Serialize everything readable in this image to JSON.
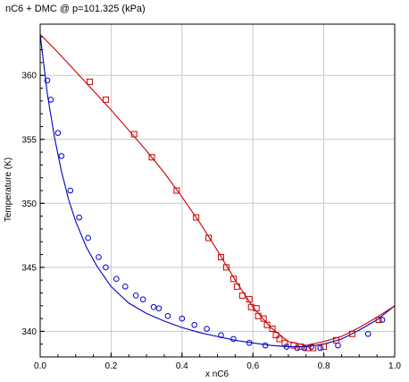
{
  "chart_data": {
    "type": "scatter",
    "title": "nC6 + DMC @ p=101.325 (kPa)",
    "xlabel": "x nC6",
    "ylabel": "Temperature (K)",
    "xlim": [
      0.0,
      1.0
    ],
    "ylim": [
      338,
      364
    ],
    "xticks": [
      0.0,
      0.2,
      0.4,
      0.6,
      0.8,
      1.0
    ],
    "xtick_labels": [
      "0.0",
      "0.2",
      "0.4",
      "0.6",
      "0.8",
      "1.0"
    ],
    "yticks": [
      340,
      345,
      350,
      355,
      360
    ],
    "ytick_labels": [
      "340",
      "345",
      "350",
      "355",
      "360"
    ],
    "grid": true,
    "legend": "none",
    "series": [
      {
        "kind": "line",
        "color": "#0000cc",
        "x": [
          0.0,
          0.02,
          0.04,
          0.06,
          0.08,
          0.1,
          0.13,
          0.16,
          0.2,
          0.25,
          0.3,
          0.35,
          0.4,
          0.45,
          0.5,
          0.55,
          0.6,
          0.65,
          0.7,
          0.75,
          0.8,
          0.85,
          0.9,
          0.95,
          1.0
        ],
        "y": [
          363.2,
          358.6,
          355.2,
          352.5,
          350.3,
          348.6,
          346.6,
          345.1,
          343.5,
          342.2,
          341.4,
          340.8,
          340.3,
          339.9,
          339.6,
          339.3,
          339.1,
          338.9,
          338.8,
          338.8,
          339.0,
          339.4,
          340.1,
          340.9,
          342.0
        ]
      },
      {
        "kind": "line",
        "color": "#cc0000",
        "x": [
          0.0,
          0.05,
          0.1,
          0.15,
          0.2,
          0.25,
          0.3,
          0.35,
          0.4,
          0.45,
          0.5,
          0.55,
          0.6,
          0.65,
          0.7,
          0.75,
          0.8,
          0.85,
          0.9,
          0.95,
          1.0
        ],
        "y": [
          363.2,
          361.8,
          360.3,
          358.8,
          357.3,
          355.7,
          354.1,
          352.4,
          350.5,
          348.5,
          346.3,
          344.0,
          341.9,
          340.3,
          339.2,
          338.9,
          339.2,
          339.6,
          340.3,
          341.1,
          342.0
        ]
      },
      {
        "kind": "markers",
        "marker": "circle",
        "color": "#0000cc",
        "x": [
          0.02,
          0.03,
          0.05,
          0.06,
          0.085,
          0.11,
          0.135,
          0.165,
          0.185,
          0.215,
          0.24,
          0.27,
          0.29,
          0.32,
          0.335,
          0.36,
          0.4,
          0.435,
          0.47,
          0.51,
          0.545,
          0.59,
          0.635,
          0.695,
          0.725,
          0.745,
          0.765,
          0.79,
          0.84,
          0.925,
          0.965
        ],
        "y": [
          359.6,
          358.1,
          355.5,
          353.7,
          351.0,
          348.9,
          347.3,
          345.8,
          345.0,
          344.1,
          343.5,
          342.8,
          342.5,
          341.9,
          341.8,
          341.2,
          341.0,
          340.5,
          340.2,
          339.7,
          339.4,
          339.1,
          338.9,
          338.8,
          338.7,
          338.7,
          338.8,
          338.7,
          338.9,
          339.8,
          340.9
        ]
      },
      {
        "kind": "markers",
        "marker": "square",
        "color": "#cc0000",
        "x": [
          0.14,
          0.185,
          0.265,
          0.315,
          0.385,
          0.44,
          0.475,
          0.51,
          0.525,
          0.545,
          0.555,
          0.57,
          0.59,
          0.595,
          0.61,
          0.615,
          0.63,
          0.64,
          0.655,
          0.665,
          0.675,
          0.69,
          0.715,
          0.735,
          0.755,
          0.77,
          0.8,
          0.835,
          0.88,
          0.955
        ],
        "y": [
          359.5,
          358.1,
          355.4,
          353.6,
          351.0,
          348.9,
          347.3,
          345.8,
          345.0,
          344.1,
          343.5,
          342.8,
          342.5,
          341.9,
          341.8,
          341.2,
          341.0,
          340.5,
          340.2,
          339.7,
          339.4,
          339.1,
          338.9,
          338.8,
          338.7,
          338.7,
          338.8,
          339.3,
          339.8,
          340.9
        ]
      }
    ]
  }
}
